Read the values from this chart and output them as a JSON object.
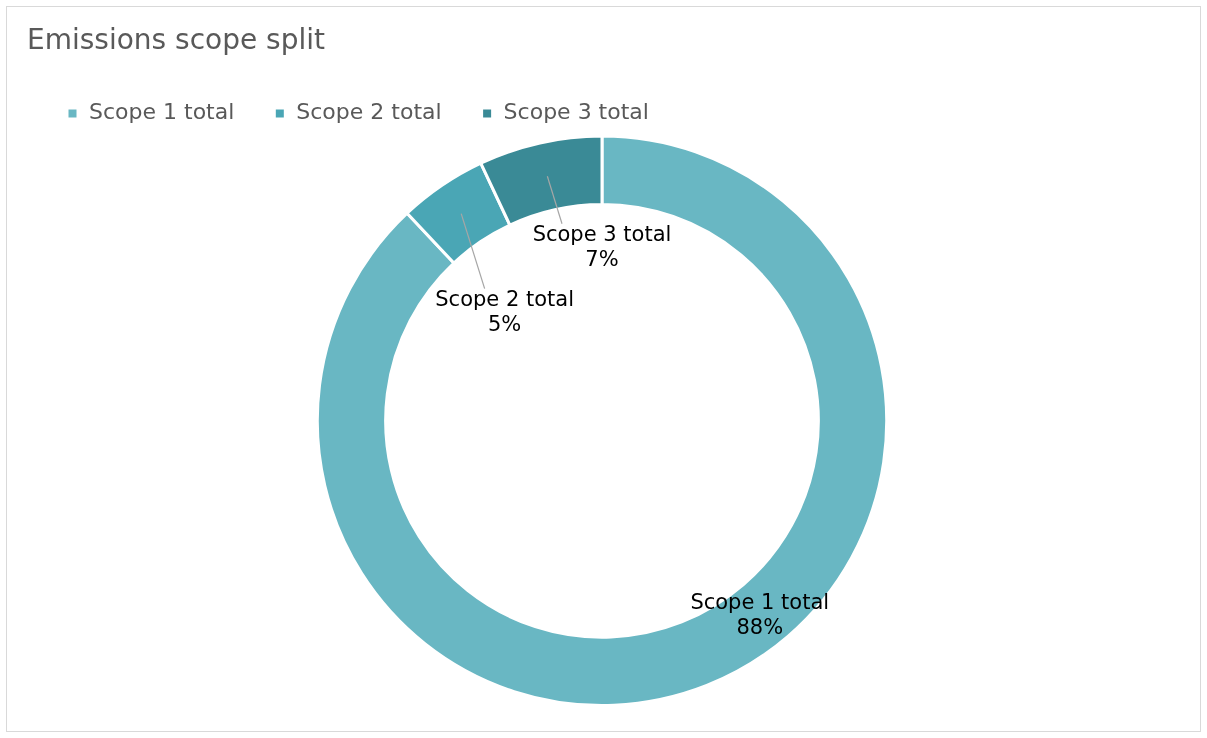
{
  "chart_data": {
    "type": "donut",
    "title": "Emissions scope split",
    "categories": [
      "Scope 1 total",
      "Scope 2 total",
      "Scope 3 total"
    ],
    "values": [
      88,
      5,
      7
    ],
    "value_labels": [
      "88%",
      "5%",
      "7%"
    ],
    "colors": [
      "#69b7c3",
      "#4aa6b5",
      "#3a8a96"
    ],
    "legend": "top left"
  }
}
